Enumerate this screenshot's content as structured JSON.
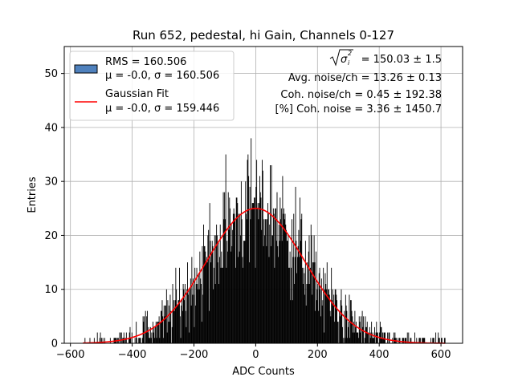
{
  "chart_data": {
    "type": "histogram",
    "title": "Run 652, pedestal, hi Gain, Channels 0-127",
    "xlabel": "ADC Counts",
    "ylabel": "Entries",
    "xlim": [
      -620,
      670
    ],
    "ylim": [
      0,
      55
    ],
    "xticks": [
      -600,
      -400,
      -200,
      0,
      200,
      400,
      600
    ],
    "yticks": [
      0,
      10,
      20,
      30,
      40,
      50
    ],
    "grid": true,
    "legend_position": "top-left",
    "histogram": {
      "label_line1": "RMS = 160.506",
      "label_line2": "μ = -0.0, σ = 160.506",
      "mean": 0.0,
      "sigma": 160.506,
      "range": [
        -560,
        615
      ],
      "bin_width": 2,
      "peak_entries": 38,
      "face_color": "#000000",
      "legend_color": "#4f81bd"
    },
    "gaussian_fit": {
      "label_line1": "Gaussian Fit",
      "label_line2": "μ = -0.0, σ = 159.446",
      "mean": 0.0,
      "sigma": 159.446,
      "amplitude": 25.0,
      "color": "#ff0000"
    },
    "annotations": {
      "sigma_prefix": "σ",
      "sigma_value": "= 150.03 ± 1.5",
      "avg_noise": "Avg. noise/ch = 13.26 ± 0.13",
      "coh_noise": "Coh. noise/ch = 0.45 ± 192.38",
      "coh_noise_pct": "[%] Coh. noise = 3.36 ± 1450.7"
    }
  }
}
